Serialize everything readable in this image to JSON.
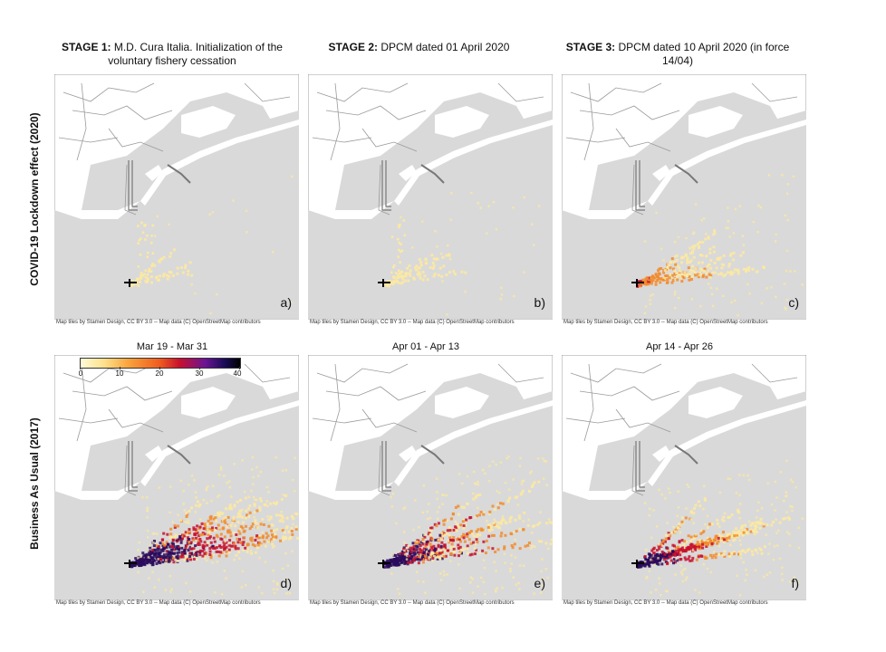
{
  "stages": [
    {
      "bold": "STAGE 1:",
      "rest": "M.D. Cura Italia. Initialization of the voluntary fishery cessation"
    },
    {
      "bold": "STAGE 2:",
      "rest": "DPCM dated 01 April 2020"
    },
    {
      "bold": "STAGE 3:",
      "rest": "DPCM dated 10 April 2020 (in force 14/04)"
    }
  ],
  "row_labels": {
    "top": "COVID-19 Lockdown effect (2020)",
    "bottom": "Business As Usual (2017)"
  },
  "date_ranges": [
    "Mar 19 - Mar 31",
    "Apr 01 - Apr 13",
    "Apr 14 - Apr 26"
  ],
  "colorbar": {
    "ticks": [
      "0",
      "10",
      "20",
      "30",
      "40"
    ],
    "min": 0,
    "max": 40,
    "colormap": "inferno_r"
  },
  "panels": [
    {
      "label": "a)",
      "attribution": "Map tiles by Stamen Design, CC BY 3.0 -- Map data (C) OpenStreetMap contributors",
      "intensity": 0.05
    },
    {
      "label": "b)",
      "attribution": "Map tiles by Stamen Design, CC BY 3.0 -- Map data (C) OpenStreetMap contributors",
      "intensity": 0.15
    },
    {
      "label": "c)",
      "attribution": "Map tiles by Stamen Design, CC BY 3.0 -- Map data (C) OpenStreetMap contributors",
      "intensity": 0.45
    },
    {
      "label": "d)",
      "attribution": "Map tiles by Stamen Design, CC BY 3.0 -- Map data (C) OpenStreetMap contributors",
      "intensity": 1.0
    },
    {
      "label": "e)",
      "attribution": "Map tiles by Stamen Design, CC BY 3.0 -- Map data (C) OpenStreetMap contributors",
      "intensity": 0.95
    },
    {
      "label": "f)",
      "attribution": "Map tiles by Stamen Design, CC BY 3.0 -- Map data (C) OpenStreetMap contributors",
      "intensity": 0.85
    }
  ],
  "colors": {
    "land": "#ffffff",
    "sea": "#d9d9d9",
    "road": "#9a9a9a",
    "low": "#fde9a0",
    "mid": "#f28b2c",
    "high": "#c8102e",
    "max": "#2a0b5c"
  }
}
